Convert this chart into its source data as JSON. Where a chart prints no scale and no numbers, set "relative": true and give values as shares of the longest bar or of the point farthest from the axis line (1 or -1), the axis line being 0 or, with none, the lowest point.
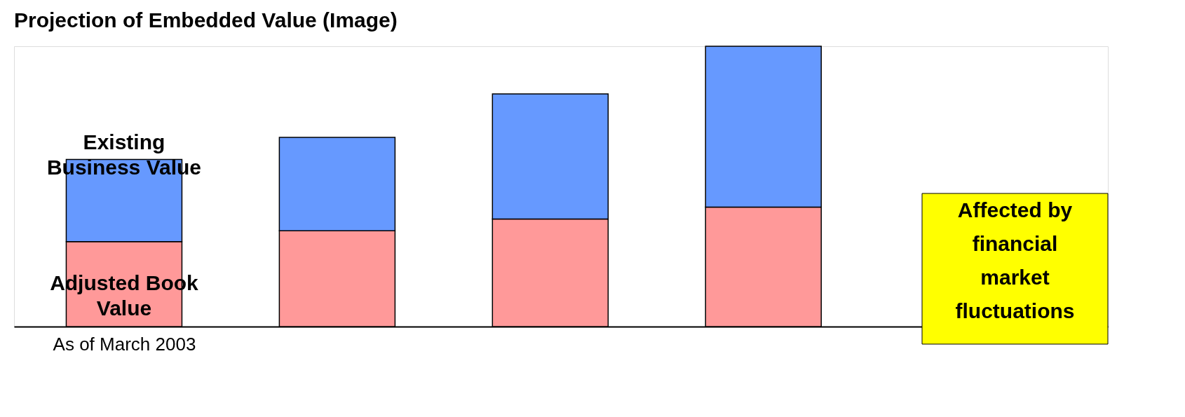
{
  "chart_data": {
    "type": "bar",
    "title": "Projection of Embedded Value (Image)",
    "stacked": true,
    "relative": true,
    "legend": false,
    "grid": false,
    "categories": [
      "As of March 2003",
      null,
      null,
      null
    ],
    "series": [
      {
        "name": "Adjusted Book Value",
        "color": "#ff9999",
        "values": [
          0.303,
          0.342,
          0.384,
          0.426
        ]
      },
      {
        "name": "Existing Business Value",
        "color": "#6699ff",
        "values": [
          0.293,
          0.333,
          0.446,
          0.574
        ]
      }
    ],
    "annotations": [
      "Affected by financial market fluctuations"
    ]
  }
}
